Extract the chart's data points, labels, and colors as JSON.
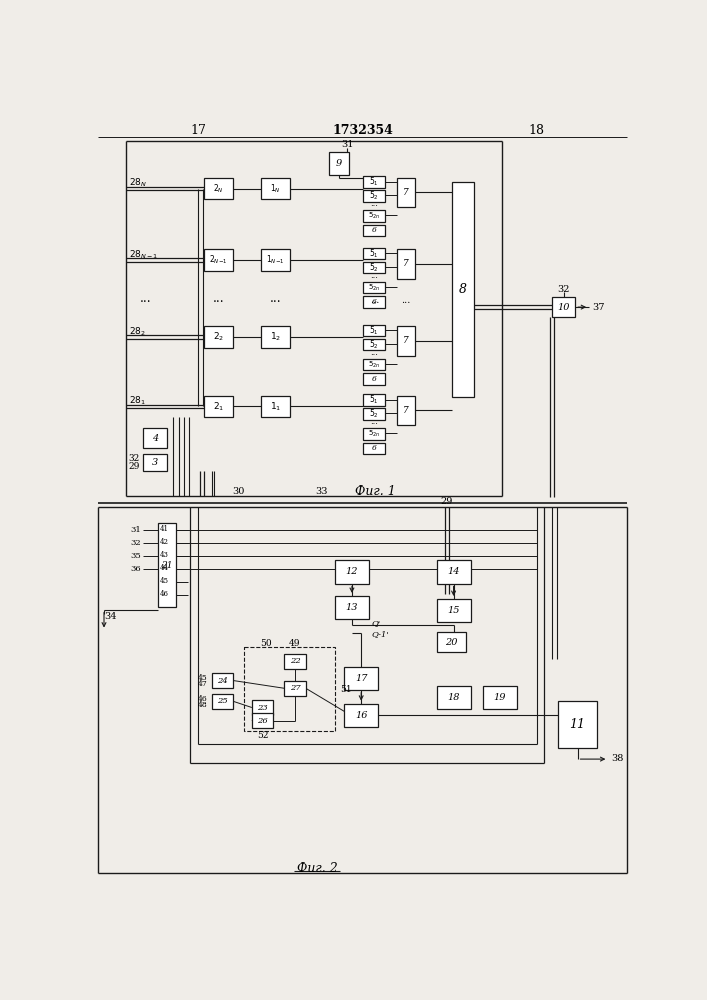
{
  "title": "1732354",
  "page_left": "17",
  "page_right": "18",
  "fig1_label": "Фиг. 1",
  "fig2_label": "Фиг. 2",
  "bg": "#f0ede8",
  "lc": "#1a1a1a",
  "bc": "#ffffff"
}
